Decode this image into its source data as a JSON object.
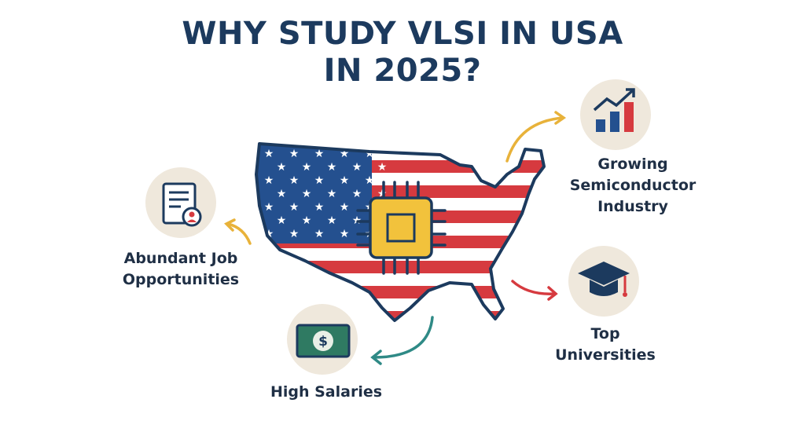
{
  "title": {
    "line1": "WHY STUDY VLSI IN USA",
    "line2": "IN 2025?"
  },
  "features": [
    {
      "icon": "document-icon",
      "line1": "Abundant Job",
      "line2": "Opportunities"
    },
    {
      "icon": "chart-icon",
      "line1": "Growing",
      "line2": "Semiconductor",
      "line3": "Industry"
    },
    {
      "icon": "graduation-cap-icon",
      "line1": "Top",
      "line2": "Universities"
    },
    {
      "icon": "dollar-bill-icon",
      "line1": "High Salaries"
    }
  ],
  "colors": {
    "navy": "#1c3a5e",
    "red": "#d63a3f",
    "blue": "#24508f",
    "yellow": "#f2c23c",
    "beige": "#efe8dc",
    "teal": "#2f8a86",
    "orange": "#e8b23a"
  }
}
